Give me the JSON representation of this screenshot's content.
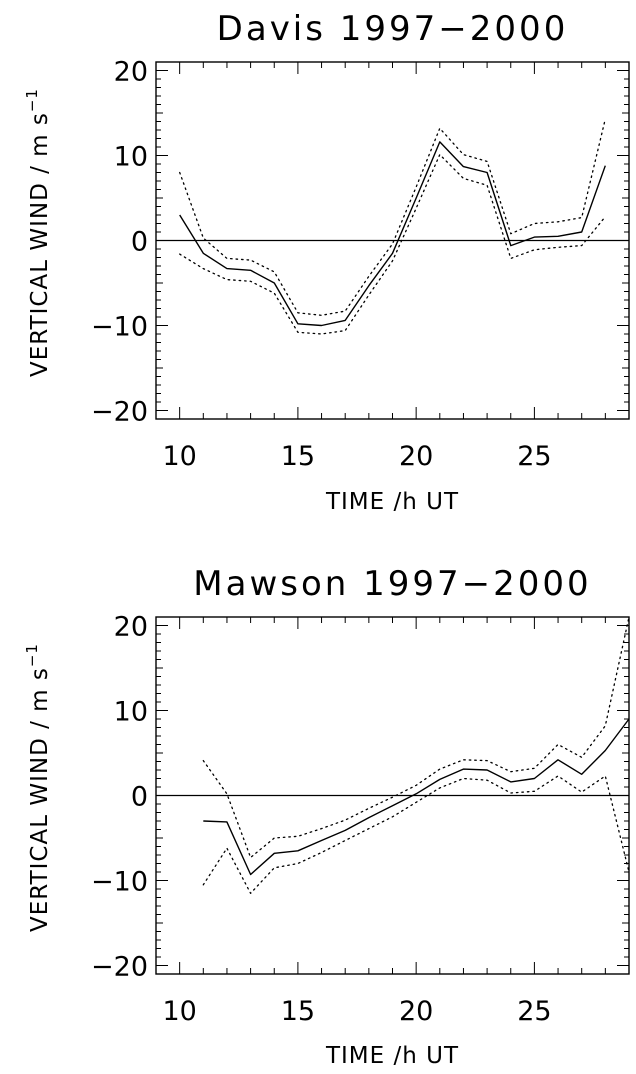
{
  "chart_data": [
    {
      "type": "line",
      "title": "Davis 1997−2000",
      "xlabel": "TIME /h UT",
      "ylabel": "VERTICAL WIND / m s",
      "ylabel_unit_superscript": "−1",
      "xlim": [
        9,
        29
      ],
      "ylim": [
        -21,
        21
      ],
      "xticks": [
        10,
        15,
        20,
        25
      ],
      "yticks": [
        -20,
        -10,
        0,
        10,
        20
      ],
      "xtick_labels": [
        "10",
        "15",
        "20",
        "25"
      ],
      "ytick_labels": [
        "−20",
        "−10",
        "0",
        "10",
        "20"
      ],
      "reference_line_y": 0,
      "series": [
        {
          "style": "solid",
          "x": [
            10,
            11,
            12,
            13,
            14,
            15,
            16,
            17,
            18,
            19,
            20,
            21,
            22,
            23,
            24,
            25,
            26,
            27,
            28
          ],
          "y": [
            3,
            -1.5,
            -3.3,
            -3.5,
            -5,
            -9.8,
            -10,
            -9.4,
            -5.3,
            -1.5,
            5,
            11.6,
            8.7,
            8,
            -0.6,
            0.4,
            0.5,
            1,
            8.8
          ]
        },
        {
          "style": "dotted",
          "x": [
            10,
            11,
            12,
            13,
            14,
            15,
            16,
            17,
            18,
            19,
            20,
            21,
            22,
            23,
            24,
            25,
            26,
            27,
            28
          ],
          "y": [
            8,
            0.3,
            -2.1,
            -2.3,
            -3.7,
            -8.5,
            -8.8,
            -8.3,
            -4.2,
            -0.4,
            6.3,
            13.2,
            10.1,
            9.3,
            0.8,
            2,
            2.2,
            2.7,
            14.3
          ]
        },
        {
          "style": "dotted",
          "x": [
            10,
            11,
            12,
            13,
            14,
            15,
            16,
            17,
            18,
            19,
            20,
            21,
            22,
            23,
            24,
            25,
            26,
            27,
            28
          ],
          "y": [
            -1.6,
            -3.3,
            -4.6,
            -4.8,
            -6.2,
            -10.8,
            -11,
            -10.6,
            -6.4,
            -2.4,
            3.8,
            10.1,
            7.3,
            6.5,
            -2.1,
            -1.1,
            -0.8,
            -0.6,
            2.8
          ]
        }
      ]
    },
    {
      "type": "line",
      "title": "Mawson 1997−2000",
      "xlabel": "TIME /h UT",
      "ylabel": "VERTICAL WIND / m s",
      "ylabel_unit_superscript": "−1",
      "xlim": [
        9,
        29
      ],
      "ylim": [
        -21,
        21
      ],
      "xticks": [
        10,
        15,
        20,
        25
      ],
      "yticks": [
        -20,
        -10,
        0,
        10,
        20
      ],
      "xtick_labels": [
        "10",
        "15",
        "20",
        "25"
      ],
      "ytick_labels": [
        "−20",
        "−10",
        "0",
        "10",
        "20"
      ],
      "reference_line_y": 0,
      "series": [
        {
          "style": "solid",
          "x": [
            11,
            12,
            13,
            14,
            15,
            16,
            17,
            18,
            19,
            20,
            21,
            22,
            23,
            24,
            25,
            26,
            27,
            28,
            29
          ],
          "y": [
            -3,
            -3.1,
            -9.3,
            -6.8,
            -6.5,
            -5.3,
            -4.1,
            -2.6,
            -1.2,
            0.2,
            1.9,
            3.1,
            3,
            1.6,
            2,
            4.2,
            2.5,
            5.3,
            9
          ]
        },
        {
          "style": "dotted",
          "x": [
            11,
            12,
            13,
            14,
            15,
            16,
            17,
            18,
            19,
            20,
            21,
            22,
            23,
            24,
            25,
            26,
            27,
            28,
            29
          ],
          "y": [
            4.1,
            0.2,
            -7.3,
            -5,
            -4.8,
            -3.9,
            -2.9,
            -1.5,
            -0.2,
            1.2,
            3.1,
            4.2,
            4.1,
            2.8,
            3.2,
            6,
            4.5,
            8.2,
            21
          ]
        },
        {
          "style": "dotted",
          "x": [
            11,
            12,
            13,
            14,
            15,
            16,
            17,
            18,
            19,
            20,
            21,
            22,
            23,
            24,
            25,
            26,
            27,
            28,
            29
          ],
          "y": [
            -10.5,
            -6.2,
            -11.5,
            -8.5,
            -8,
            -6.7,
            -5.3,
            -3.9,
            -2.5,
            -0.8,
            0.9,
            2,
            1.8,
            0.3,
            0.5,
            2.3,
            0.4,
            2.3,
            -9
          ]
        }
      ]
    }
  ]
}
